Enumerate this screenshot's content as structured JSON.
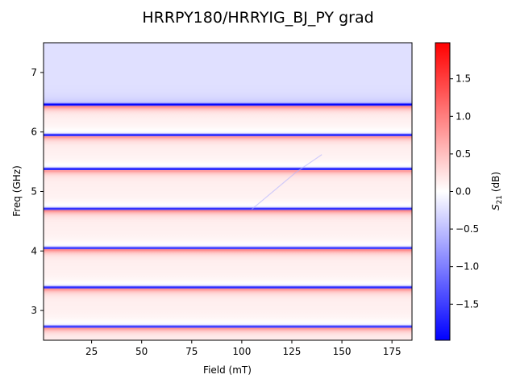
{
  "chart_data": {
    "type": "heatmap",
    "title": "HRRPY180/HRRYIG_BJ_PY grad",
    "xlabel": "Field (mT)",
    "ylabel": "Freq (GHz)",
    "xlim": [
      1,
      185
    ],
    "ylim": [
      2.5,
      7.5
    ],
    "x_ticks": [
      25,
      50,
      75,
      100,
      125,
      150,
      175
    ],
    "y_ticks": [
      3,
      4,
      5,
      6,
      7
    ],
    "colorbar": {
      "label": "S21 (dB)",
      "label_sub": "21",
      "label_main": "S",
      "label_unit": " (dB)",
      "vmin": -1.98,
      "vmax": 1.98,
      "ticks": [
        1.5,
        1.0,
        0.5,
        0.0,
        -0.5,
        -1.0,
        -1.5
      ],
      "tick_labels": [
        "1.5",
        "1.0",
        "0.5",
        "0.0",
        "−0.5",
        "−1.0",
        "−1.5"
      ],
      "colormap": "bwr",
      "color_low": "#0000ff",
      "color_mid": "#ffffff",
      "color_high": "#ff0000"
    },
    "resonance_bands": [
      {
        "freq_ghz": 2.72,
        "dip_db": -1.5,
        "peak_db": 1.2
      },
      {
        "freq_ghz": 3.38,
        "dip_db": -1.6,
        "peak_db": 1.3
      },
      {
        "freq_ghz": 4.04,
        "dip_db": -1.5,
        "peak_db": 1.4
      },
      {
        "freq_ghz": 4.7,
        "dip_db": -1.6,
        "peak_db": 1.4
      },
      {
        "freq_ghz": 5.37,
        "dip_db": -1.7,
        "peak_db": 1.2
      },
      {
        "freq_ghz": 5.94,
        "dip_db": -1.7,
        "peak_db": 1.2
      },
      {
        "freq_ghz": 6.45,
        "dip_db": -1.8,
        "peak_db": 1.4
      }
    ],
    "background_tint": {
      "low_freq_db": 0.2,
      "high_freq_upper_band_db": -0.3
    },
    "field_dependent_mode": {
      "points": [
        [
          105,
          4.7
        ],
        [
          127,
          5.32
        ],
        [
          140,
          5.62
        ]
      ],
      "amplitude_db": -0.6
    }
  }
}
